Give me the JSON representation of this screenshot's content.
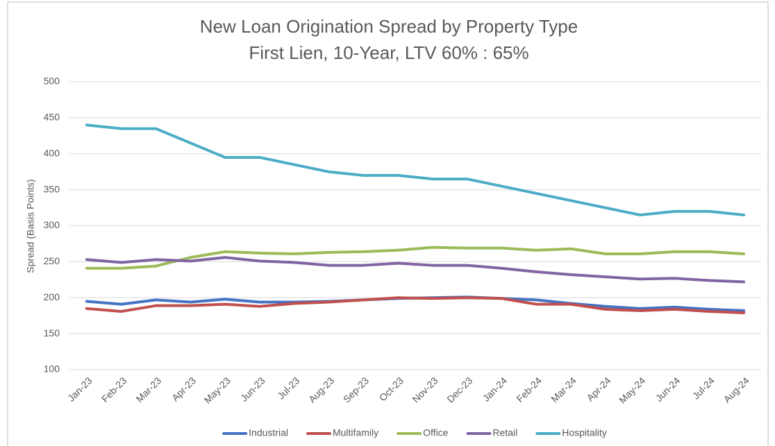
{
  "chart_data": {
    "type": "line",
    "title": "New Loan Origination Spread by Property Type",
    "subtitle": "First Lien, 10-Year, LTV 60% : 65%",
    "y_label": "Spread (Basis Points)",
    "categories": [
      "Jan-23",
      "Feb-23",
      "Mar-23",
      "Apr-23",
      "May-23",
      "Jun-23",
      "Jul-23",
      "Aug-23",
      "Sep-23",
      "Oct-23",
      "Nov-23",
      "Dec-23",
      "Jan-24",
      "Feb-24",
      "Mar-24",
      "Apr-24",
      "May-24",
      "Jun-24",
      "Jul-24",
      "Aug-24"
    ],
    "series": [
      {
        "name": "Industrial",
        "color": "#4472c4",
        "values": [
          195,
          191,
          197,
          194,
          198,
          194,
          194,
          195,
          197,
          199,
          200,
          201,
          199,
          197,
          192,
          188,
          185,
          187,
          184,
          182
        ]
      },
      {
        "name": "Multifamily",
        "color": "#c0504d",
        "values": [
          185,
          181,
          189,
          189,
          191,
          188,
          192,
          194,
          197,
          200,
          199,
          200,
          199,
          191,
          191,
          184,
          182,
          184,
          181,
          179
        ]
      },
      {
        "name": "Office",
        "color": "#9bbb59",
        "values": [
          241,
          241,
          244,
          256,
          264,
          262,
          261,
          263,
          264,
          266,
          270,
          269,
          269,
          266,
          268,
          261,
          261,
          264,
          264,
          261
        ]
      },
      {
        "name": "Retail",
        "color": "#8064a2",
        "values": [
          253,
          249,
          253,
          251,
          256,
          251,
          249,
          245,
          245,
          248,
          245,
          245,
          241,
          236,
          232,
          229,
          226,
          227,
          224,
          222
        ]
      },
      {
        "name": "Hospitality",
        "color": "#4bacc6",
        "values": [
          440,
          435,
          435,
          415,
          395,
          395,
          385,
          375,
          370,
          370,
          365,
          365,
          355,
          345,
          335,
          325,
          315,
          320,
          320,
          315
        ]
      }
    ],
    "ylim": [
      100,
      500
    ],
    "yticks": [
      100,
      150,
      200,
      250,
      300,
      350,
      400,
      450,
      500
    ],
    "grid": true,
    "legend": "bottom"
  }
}
